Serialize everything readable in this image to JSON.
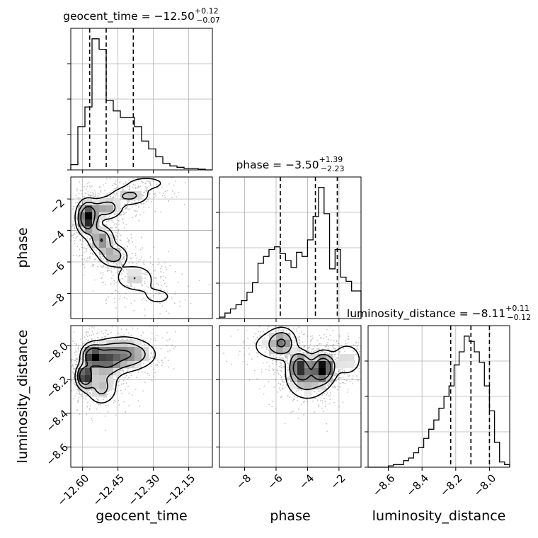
{
  "chart_data": {
    "type": "corner",
    "parameters": [
      {
        "name": "geocent_time",
        "title_prefix": "geocent_time = ",
        "median": "−12.50",
        "plus": "+0.12",
        "minus": "−0.07",
        "range": [
          -12.65,
          -12.05
        ],
        "ticks": [
          -12.6,
          -12.45,
          -12.3,
          -12.15
        ],
        "tick_labels": [
          "−12.60",
          "−12.45",
          "−12.30",
          "−12.15"
        ],
        "quantiles": [
          -12.57,
          -12.5,
          -12.385
        ],
        "hist_edges": [
          -12.65,
          -12.62,
          -12.59,
          -12.56,
          -12.53,
          -12.5,
          -12.47,
          -12.44,
          -12.41,
          -12.38,
          -12.35,
          -12.32,
          -12.29,
          -12.26,
          -12.23,
          -12.2,
          -12.17,
          -12.14,
          -12.11,
          -12.08,
          -12.05
        ],
        "hist_counts": [
          0.04,
          0.33,
          0.48,
          1.0,
          0.92,
          0.53,
          0.45,
          0.4,
          0.4,
          0.33,
          0.22,
          0.16,
          0.1,
          0.05,
          0.03,
          0.02,
          0.01,
          0.01,
          0.005,
          0.0
        ]
      },
      {
        "name": "phase",
        "title_prefix": "phase = ",
        "median": "−3.50",
        "plus": "+1.39",
        "minus": "−2.23",
        "range": [
          -9.6,
          -0.6
        ],
        "ticks": [
          -8,
          -6,
          -4,
          -2
        ],
        "tick_labels": [
          "−8",
          "−6",
          "−4",
          "−2"
        ],
        "quantiles": [
          -5.73,
          -3.5,
          -2.11
        ],
        "hist_edges": [
          -9.6,
          -9.25,
          -8.9,
          -8.55,
          -8.2,
          -7.85,
          -7.5,
          -7.15,
          -6.8,
          -6.45,
          -6.1,
          -5.75,
          -5.4,
          -5.05,
          -4.7,
          -4.35,
          -4.0,
          -3.65,
          -3.3,
          -2.95,
          -2.6,
          -2.25,
          -1.9,
          -1.55,
          -1.2,
          -0.85,
          -0.6
        ],
        "hist_counts": [
          0.01,
          0.04,
          0.07,
          0.1,
          0.13,
          0.19,
          0.26,
          0.4,
          0.45,
          0.5,
          0.52,
          0.47,
          0.42,
          0.37,
          0.48,
          0.45,
          0.57,
          0.74,
          0.95,
          0.76,
          0.36,
          0.5,
          0.3,
          0.27,
          0.2,
          0.2
        ]
      },
      {
        "name": "luminosity_distance",
        "title_prefix": "luminosity_distance = ",
        "median": "−8.11",
        "plus": "+0.11",
        "minus": "−0.12",
        "range": [
          -8.72,
          -7.88
        ],
        "ticks": [
          -8.6,
          -8.4,
          -8.2,
          -8.0
        ],
        "tick_labels": [
          "−8.6",
          "−8.4",
          "−8.2",
          "−8.0"
        ],
        "quantiles": [
          -8.23,
          -8.11,
          -8.0
        ],
        "hist_edges": [
          -8.72,
          -8.69,
          -8.66,
          -8.63,
          -8.6,
          -8.57,
          -8.54,
          -8.51,
          -8.48,
          -8.45,
          -8.42,
          -8.39,
          -8.36,
          -8.33,
          -8.3,
          -8.27,
          -8.24,
          -8.21,
          -8.18,
          -8.15,
          -8.12,
          -8.09,
          -8.06,
          -8.03,
          -8.0,
          -7.97,
          -7.94,
          -7.91,
          -7.88
        ],
        "hist_counts": [
          0.0,
          0.0,
          0.0,
          0.0,
          0.01,
          0.02,
          0.02,
          0.05,
          0.07,
          0.11,
          0.15,
          0.22,
          0.29,
          0.36,
          0.45,
          0.54,
          0.62,
          0.78,
          0.88,
          1.0,
          0.96,
          0.88,
          0.8,
          0.62,
          0.43,
          0.19,
          0.04,
          0.02
        ]
      }
    ],
    "pairs": [
      {
        "x": "geocent_time",
        "y": "phase",
        "samples_description_counts_only": false,
        "density_blobs": [
          {
            "cx": -12.58,
            "cy": -3.2,
            "sx": 0.025,
            "sy": 0.6,
            "w": 1.0
          },
          {
            "cx": -12.52,
            "cy": -4.6,
            "sx": 0.03,
            "sy": 0.5,
            "w": 0.55
          },
          {
            "cx": -12.47,
            "cy": -5.6,
            "sx": 0.035,
            "sy": 0.4,
            "w": 0.45
          },
          {
            "cx": -12.5,
            "cy": -2.6,
            "sx": 0.04,
            "sy": 0.4,
            "w": 0.45
          },
          {
            "cx": -12.4,
            "cy": -1.8,
            "sx": 0.05,
            "sy": 0.35,
            "w": 0.35
          },
          {
            "cx": -12.38,
            "cy": -7.0,
            "sx": 0.05,
            "sy": 0.5,
            "w": 0.3
          },
          {
            "cx": -12.28,
            "cy": -8.2,
            "sx": 0.06,
            "sy": 0.5,
            "w": 0.15
          },
          {
            "cx": -12.33,
            "cy": -1.0,
            "sx": 0.06,
            "sy": 0.3,
            "w": 0.2
          }
        ]
      },
      {
        "x": "geocent_time",
        "y": "luminosity_distance",
        "density_blobs": [
          {
            "cx": -12.59,
            "cy": -8.18,
            "sx": 0.02,
            "sy": 0.04,
            "w": 1.0
          },
          {
            "cx": -12.56,
            "cy": -8.06,
            "sx": 0.025,
            "sy": 0.04,
            "w": 0.8
          },
          {
            "cx": -12.5,
            "cy": -8.08,
            "sx": 0.04,
            "sy": 0.06,
            "w": 0.6
          },
          {
            "cx": -12.42,
            "cy": -8.05,
            "sx": 0.05,
            "sy": 0.06,
            "w": 0.45
          },
          {
            "cx": -12.35,
            "cy": -8.05,
            "sx": 0.05,
            "sy": 0.05,
            "w": 0.2
          },
          {
            "cx": -12.52,
            "cy": -8.25,
            "sx": 0.04,
            "sy": 0.06,
            "w": 0.35
          }
        ]
      },
      {
        "x": "phase",
        "y": "luminosity_distance",
        "density_blobs": [
          {
            "cx": -3.0,
            "cy": -8.13,
            "sx": 0.4,
            "sy": 0.05,
            "w": 1.0
          },
          {
            "cx": -4.5,
            "cy": -8.12,
            "sx": 0.4,
            "sy": 0.05,
            "w": 0.75
          },
          {
            "cx": -5.6,
            "cy": -7.98,
            "sx": 0.5,
            "sy": 0.05,
            "w": 0.55
          },
          {
            "cx": -4.0,
            "cy": -8.2,
            "sx": 0.8,
            "sy": 0.07,
            "w": 0.45
          },
          {
            "cx": -1.5,
            "cy": -8.08,
            "sx": 0.6,
            "sy": 0.06,
            "w": 0.3
          },
          {
            "cx": -6.5,
            "cy": -8.0,
            "sx": 0.8,
            "sy": 0.06,
            "w": 0.2
          }
        ]
      }
    ]
  }
}
